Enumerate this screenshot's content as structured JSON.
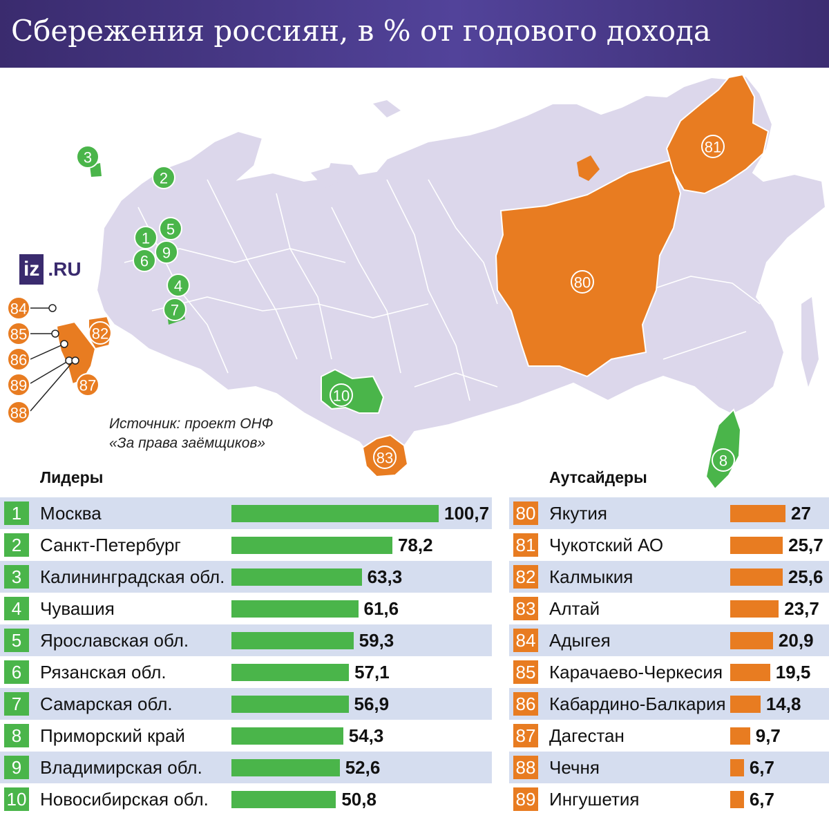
{
  "title": "Сбережения россиян, в % от годового дохода",
  "logo": {
    "box": "iz",
    "rest": ".RU"
  },
  "source_line1": "Источник: проект ОНФ",
  "source_line2": "«За права заёмщиков»",
  "colors": {
    "leaders": "#4ab54a",
    "outsiders": "#e87c21",
    "header": "#3a2b6e",
    "map_land": "#dcd7eb",
    "row_shade": "#d5ddef"
  },
  "chart_data": [
    {
      "type": "bar",
      "title": "Лидеры",
      "ranks": [
        "1",
        "2",
        "3",
        "4",
        "5",
        "6",
        "7",
        "8",
        "9",
        "10"
      ],
      "categories": [
        "Москва",
        "Санкт-Петербург",
        "Калининградская обл.",
        "Чувашия",
        "Ярославская обл.",
        "Рязанская обл.",
        "Самарская обл.",
        "Приморский край",
        "Владимирская обл.",
        "Новосибирская обл."
      ],
      "values": [
        100.7,
        78.2,
        63.3,
        61.6,
        59.3,
        57.1,
        56.9,
        54.3,
        52.6,
        50.8
      ],
      "value_labels": [
        "100,7",
        "78,2",
        "63,3",
        "61,6",
        "59,3",
        "57,1",
        "56,9",
        "54,3",
        "52,6",
        "50,8"
      ],
      "color": "#4ab54a"
    },
    {
      "type": "bar",
      "title": "Аутсайдеры",
      "ranks": [
        "80",
        "81",
        "82",
        "83",
        "84",
        "85",
        "86",
        "87",
        "88",
        "89"
      ],
      "categories": [
        "Якутия",
        "Чукотский АО",
        "Калмыкия",
        "Алтай",
        "Адыгея",
        "Карачаево-Черкесия",
        "Кабардино-Балкария",
        "Дагестан",
        "Чечня",
        "Ингушетия"
      ],
      "values": [
        27,
        25.7,
        25.6,
        23.7,
        20.9,
        19.5,
        14.8,
        9.7,
        6.7,
        6.7
      ],
      "value_labels": [
        "27",
        "25,7",
        "25,6",
        "23,7",
        "20,9",
        "19,5",
        "14,8",
        "9,7",
        "6,7",
        "6,7"
      ],
      "color": "#e87c21"
    }
  ],
  "map_markers": [
    {
      "label": "3",
      "group": "leaders"
    },
    {
      "label": "2",
      "group": "leaders"
    },
    {
      "label": "5",
      "group": "leaders"
    },
    {
      "label": "1",
      "group": "leaders"
    },
    {
      "label": "9",
      "group": "leaders"
    },
    {
      "label": "6",
      "group": "leaders"
    },
    {
      "label": "4",
      "group": "leaders"
    },
    {
      "label": "7",
      "group": "leaders"
    },
    {
      "label": "10",
      "group": "leaders"
    },
    {
      "label": "8",
      "group": "leaders"
    },
    {
      "label": "81",
      "group": "outsiders"
    },
    {
      "label": "80",
      "group": "outsiders"
    },
    {
      "label": "82",
      "group": "outsiders"
    },
    {
      "label": "83",
      "group": "outsiders"
    },
    {
      "label": "87",
      "group": "outsiders"
    },
    {
      "label": "84",
      "group": "outsiders"
    },
    {
      "label": "85",
      "group": "outsiders"
    },
    {
      "label": "86",
      "group": "outsiders"
    },
    {
      "label": "89",
      "group": "outsiders"
    },
    {
      "label": "88",
      "group": "outsiders"
    }
  ]
}
